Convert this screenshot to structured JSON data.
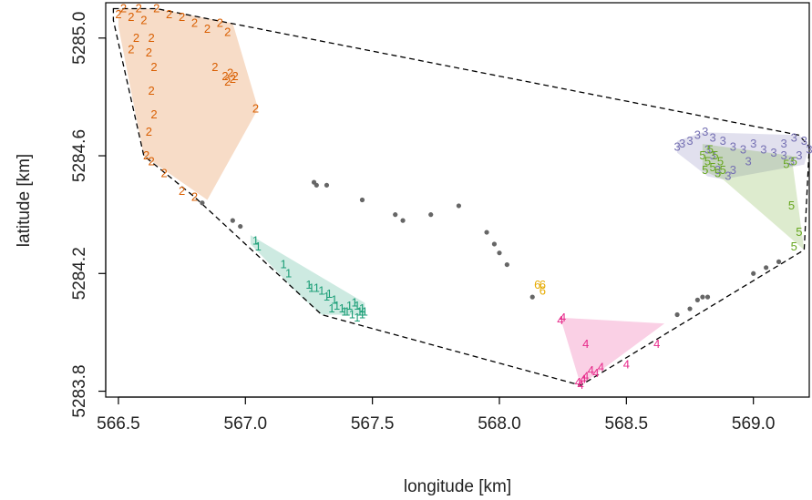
{
  "chart_data": {
    "type": "scatter",
    "title": "",
    "xlabel": "longitude [km]",
    "ylabel": "latitude [km]",
    "xlim": [
      566.45,
      569.22
    ],
    "ylim": [
      5283.78,
      5285.12
    ],
    "xticks": [
      566.5,
      567.0,
      567.5,
      568.0,
      568.5,
      569.0
    ],
    "yticks": [
      5283.8,
      5284.2,
      5284.6,
      5285.0
    ],
    "xtick_labels": [
      "566.5",
      "567.0",
      "567.5",
      "568.0",
      "568.5",
      "569.0"
    ],
    "ytick_labels": [
      "5283.8",
      "5284.2",
      "5284.6",
      "5285.0"
    ],
    "grid": false,
    "legend": "none",
    "overall_hull": {
      "style": "dashed",
      "color": "#000000",
      "points": [
        [
          566.48,
          5285.1
        ],
        [
          566.65,
          5285.1
        ],
        [
          569.18,
          5284.67
        ],
        [
          569.22,
          5284.63
        ],
        [
          569.2,
          5284.28
        ],
        [
          568.32,
          5283.82
        ],
        [
          567.3,
          5284.06
        ],
        [
          566.8,
          5284.46
        ],
        [
          566.6,
          5284.6
        ],
        [
          566.48,
          5285.06
        ]
      ]
    },
    "series": [
      {
        "name": "1",
        "color": "#1b9e77",
        "fill": "#1b9e77",
        "hull": [
          [
            567.02,
            5284.33
          ],
          [
            567.47,
            5284.1
          ],
          [
            567.47,
            5284.06
          ],
          [
            567.3,
            5284.06
          ],
          [
            567.22,
            5284.12
          ],
          [
            567.02,
            5284.3
          ]
        ],
        "points": [
          [
            567.04,
            5284.31
          ],
          [
            567.05,
            5284.29
          ],
          [
            567.15,
            5284.23
          ],
          [
            567.17,
            5284.2
          ],
          [
            567.25,
            5284.16
          ],
          [
            567.26,
            5284.15
          ],
          [
            567.28,
            5284.15
          ],
          [
            567.3,
            5284.14
          ],
          [
            567.32,
            5284.12
          ],
          [
            567.33,
            5284.13
          ],
          [
            567.35,
            5284.11
          ],
          [
            567.36,
            5284.09
          ],
          [
            567.38,
            5284.08
          ],
          [
            567.4,
            5284.07
          ],
          [
            567.41,
            5284.09
          ],
          [
            567.42,
            5284.06
          ],
          [
            567.43,
            5284.1
          ],
          [
            567.44,
            5284.09
          ],
          [
            567.45,
            5284.07
          ],
          [
            567.46,
            5284.08
          ],
          [
            567.47,
            5284.07
          ],
          [
            567.46,
            5284.06
          ],
          [
            567.44,
            5284.05
          ],
          [
            567.39,
            5284.07
          ],
          [
            567.34,
            5284.08
          ]
        ]
      },
      {
        "name": "2",
        "color": "#d95f02",
        "fill": "#d95f02",
        "hull": [
          [
            566.5,
            5285.1
          ],
          [
            566.65,
            5285.1
          ],
          [
            566.95,
            5285.05
          ],
          [
            567.05,
            5284.76
          ],
          [
            566.85,
            5284.45
          ],
          [
            566.6,
            5284.6
          ],
          [
            566.5,
            5285.04
          ]
        ],
        "points": [
          [
            566.5,
            5285.08
          ],
          [
            566.52,
            5285.1
          ],
          [
            566.55,
            5285.07
          ],
          [
            566.58,
            5285.1
          ],
          [
            566.6,
            5285.06
          ],
          [
            566.65,
            5285.1
          ],
          [
            566.7,
            5285.08
          ],
          [
            566.75,
            5285.07
          ],
          [
            566.8,
            5285.05
          ],
          [
            566.85,
            5285.03
          ],
          [
            566.9,
            5285.05
          ],
          [
            566.93,
            5285.02
          ],
          [
            566.88,
            5284.9
          ],
          [
            566.92,
            5284.87
          ],
          [
            566.94,
            5284.88
          ],
          [
            566.95,
            5284.86
          ],
          [
            566.93,
            5284.85
          ],
          [
            566.96,
            5284.87
          ],
          [
            567.04,
            5284.76
          ],
          [
            566.63,
            5285.0
          ],
          [
            566.62,
            5284.95
          ],
          [
            566.64,
            5284.9
          ],
          [
            566.63,
            5284.82
          ],
          [
            566.64,
            5284.74
          ],
          [
            566.62,
            5284.68
          ],
          [
            566.61,
            5284.6
          ],
          [
            566.63,
            5284.58
          ],
          [
            566.68,
            5284.54
          ],
          [
            566.75,
            5284.48
          ],
          [
            566.8,
            5284.46
          ],
          [
            566.57,
            5285.0
          ],
          [
            566.55,
            5284.96
          ]
        ]
      },
      {
        "name": "3",
        "color": "#7570b3",
        "fill": "#7570b3",
        "hull": [
          [
            568.7,
            5284.65
          ],
          [
            568.8,
            5284.68
          ],
          [
            569.18,
            5284.67
          ],
          [
            569.22,
            5284.63
          ],
          [
            569.2,
            5284.57
          ],
          [
            568.88,
            5284.52
          ],
          [
            568.82,
            5284.53
          ],
          [
            568.7,
            5284.61
          ]
        ],
        "points": [
          [
            568.7,
            5284.63
          ],
          [
            568.72,
            5284.64
          ],
          [
            568.75,
            5284.65
          ],
          [
            568.78,
            5284.67
          ],
          [
            568.81,
            5284.68
          ],
          [
            568.84,
            5284.66
          ],
          [
            568.88,
            5284.65
          ],
          [
            568.92,
            5284.63
          ],
          [
            568.96,
            5284.62
          ],
          [
            569.0,
            5284.64
          ],
          [
            569.04,
            5284.62
          ],
          [
            569.08,
            5284.61
          ],
          [
            569.12,
            5284.64
          ],
          [
            569.16,
            5284.66
          ],
          [
            569.2,
            5284.65
          ],
          [
            569.22,
            5284.62
          ],
          [
            569.18,
            5284.6
          ],
          [
            569.15,
            5284.58
          ],
          [
            569.12,
            5284.6
          ],
          [
            568.98,
            5284.58
          ],
          [
            568.92,
            5284.55
          ],
          [
            568.9,
            5284.53
          ],
          [
            568.86,
            5284.55
          ],
          [
            568.84,
            5284.6
          ],
          [
            568.82,
            5284.62
          ]
        ]
      },
      {
        "name": "4",
        "color": "#e7298a",
        "fill": "#e7298a",
        "hull": [
          [
            568.24,
            5284.05
          ],
          [
            568.65,
            5284.03
          ],
          [
            568.32,
            5283.82
          ]
        ],
        "points": [
          [
            568.25,
            5284.05
          ],
          [
            568.24,
            5284.04
          ],
          [
            568.34,
            5283.96
          ],
          [
            568.62,
            5283.96
          ],
          [
            568.5,
            5283.89
          ],
          [
            568.4,
            5283.88
          ],
          [
            568.36,
            5283.87
          ],
          [
            568.38,
            5283.86
          ],
          [
            568.34,
            5283.85
          ],
          [
            568.33,
            5283.84
          ],
          [
            568.32,
            5283.82
          ],
          [
            568.31,
            5283.83
          ]
        ]
      },
      {
        "name": "5",
        "color": "#66a61e",
        "fill": "#66a61e",
        "hull": [
          [
            568.8,
            5284.64
          ],
          [
            569.15,
            5284.6
          ],
          [
            569.2,
            5284.28
          ],
          [
            568.88,
            5284.52
          ],
          [
            568.8,
            5284.55
          ]
        ],
        "points": [
          [
            568.8,
            5284.6
          ],
          [
            568.82,
            5284.58
          ],
          [
            568.84,
            5284.56
          ],
          [
            568.86,
            5284.54
          ],
          [
            568.88,
            5284.55
          ],
          [
            568.83,
            5284.62
          ],
          [
            568.85,
            5284.6
          ],
          [
            568.81,
            5284.55
          ],
          [
            568.87,
            5284.58
          ],
          [
            569.13,
            5284.57
          ],
          [
            569.16,
            5284.58
          ],
          [
            569.15,
            5284.43
          ],
          [
            569.18,
            5284.34
          ],
          [
            569.16,
            5284.29
          ]
        ]
      },
      {
        "name": "6",
        "color": "#e6ab02",
        "fill": "#e6ab02",
        "hull": [],
        "points": [
          [
            568.15,
            5284.16
          ],
          [
            568.17,
            5284.16
          ],
          [
            568.17,
            5284.14
          ]
        ]
      }
    ],
    "unassigned_points": {
      "color": "#666666",
      "points": [
        [
          567.27,
          5284.51
        ],
        [
          567.28,
          5284.5
        ],
        [
          567.32,
          5284.5
        ],
        [
          567.46,
          5284.45
        ],
        [
          567.59,
          5284.4
        ],
        [
          567.62,
          5284.38
        ],
        [
          567.73,
          5284.4
        ],
        [
          567.84,
          5284.43
        ],
        [
          567.95,
          5284.34
        ],
        [
          567.98,
          5284.3
        ],
        [
          568.0,
          5284.27
        ],
        [
          568.03,
          5284.23
        ],
        [
          568.13,
          5284.12
        ],
        [
          568.7,
          5284.06
        ],
        [
          568.75,
          5284.08
        ],
        [
          568.78,
          5284.11
        ],
        [
          568.8,
          5284.12
        ],
        [
          568.82,
          5284.12
        ],
        [
          569.0,
          5284.2
        ],
        [
          569.05,
          5284.22
        ],
        [
          569.1,
          5284.24
        ],
        [
          566.83,
          5284.44
        ],
        [
          566.95,
          5284.38
        ],
        [
          566.98,
          5284.36
        ]
      ]
    }
  }
}
